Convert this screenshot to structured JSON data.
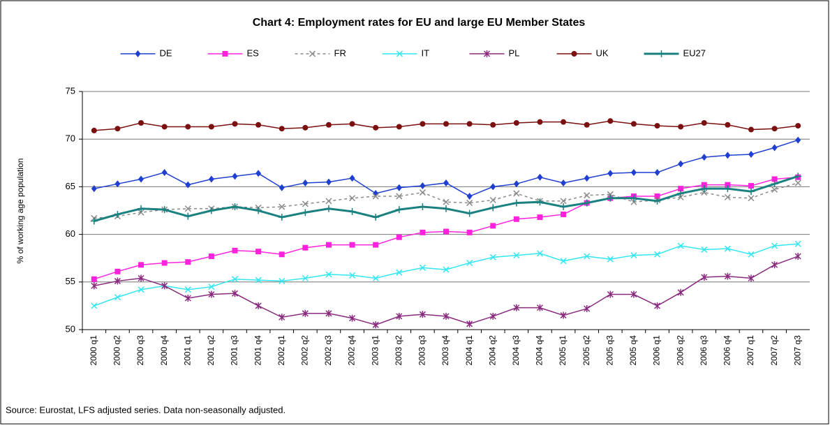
{
  "chart_data": {
    "type": "line",
    "title": "Chart 4: Employment rates for EU and large EU Member States",
    "y_label": "% of working age population",
    "source": "Source: Eurostat, LFS adjusted series. Data non-seasonally adjusted.",
    "categories": [
      "2000 q1",
      "2000 q2",
      "2000 q3",
      "2000 q4",
      "2001 q1",
      "2001 q2",
      "2001 q3",
      "2001 q4",
      "2002 q1",
      "2002 q2",
      "2002 q3",
      "2002 q4",
      "2003 q1",
      "2003 q2",
      "2003 q3",
      "2003 q4",
      "2004 q1",
      "2004 q2",
      "2004 q3",
      "2004 q4",
      "2005 q1",
      "2005 q2",
      "2005 q3",
      "2005 q4",
      "2006 q1",
      "2006 q2",
      "2006 q3",
      "2006 q4",
      "2007 q1",
      "2007 q2",
      "2007 q3"
    ],
    "ylim": [
      50,
      75
    ],
    "yticks": [
      50,
      55,
      60,
      65,
      70,
      75
    ],
    "grid": true,
    "legend": "top",
    "series": [
      {
        "name": "DE",
        "color": "#1f3fd0",
        "marker": "diamond",
        "dash": false,
        "values": [
          64.8,
          65.3,
          65.8,
          66.5,
          65.2,
          65.8,
          66.1,
          66.4,
          64.9,
          65.4,
          65.5,
          65.9,
          64.3,
          64.9,
          65.1,
          65.4,
          64.0,
          65.0,
          65.3,
          66.0,
          65.4,
          65.9,
          66.4,
          66.5,
          66.5,
          67.4,
          68.1,
          68.3,
          68.4,
          69.1,
          69.9
        ]
      },
      {
        "name": "ES",
        "color": "#ff22dd",
        "marker": "square",
        "dash": false,
        "values": [
          55.3,
          56.1,
          56.8,
          57.0,
          57.1,
          57.7,
          58.3,
          58.2,
          57.9,
          58.6,
          58.9,
          58.9,
          58.9,
          59.7,
          60.2,
          60.3,
          60.2,
          60.9,
          61.6,
          61.8,
          62.1,
          63.3,
          63.8,
          64.0,
          64.0,
          64.8,
          65.2,
          65.2,
          65.1,
          65.8,
          66.0
        ]
      },
      {
        "name": "FR",
        "color": "#8a8a8a",
        "marker": "x",
        "dash": true,
        "values": [
          61.7,
          61.9,
          62.3,
          62.6,
          62.7,
          62.7,
          62.9,
          62.8,
          62.9,
          63.2,
          63.5,
          63.8,
          64.0,
          64.0,
          64.4,
          63.4,
          63.3,
          63.6,
          64.3,
          63.5,
          63.5,
          64.1,
          64.2,
          63.4,
          63.6,
          63.9,
          64.4,
          63.9,
          63.8,
          64.7,
          65.4
        ]
      },
      {
        "name": "IT",
        "color": "#33e6f2",
        "marker": "x",
        "dash": false,
        "values": [
          52.5,
          53.4,
          54.2,
          54.6,
          54.2,
          54.5,
          55.3,
          55.2,
          55.1,
          55.4,
          55.8,
          55.7,
          55.4,
          56.0,
          56.5,
          56.3,
          57.0,
          57.6,
          57.8,
          58.0,
          57.2,
          57.7,
          57.4,
          57.8,
          57.9,
          58.8,
          58.4,
          58.5,
          57.9,
          58.8,
          59.0
        ]
      },
      {
        "name": "PL",
        "color": "#8a2a7e",
        "marker": "star",
        "dash": false,
        "values": [
          54.6,
          55.1,
          55.4,
          54.6,
          53.3,
          53.7,
          53.8,
          52.5,
          51.3,
          51.7,
          51.7,
          51.2,
          50.5,
          51.4,
          51.6,
          51.4,
          50.6,
          51.4,
          52.3,
          52.3,
          51.5,
          52.2,
          53.7,
          53.7,
          52.5,
          53.9,
          55.5,
          55.6,
          55.4,
          56.8,
          57.7
        ]
      },
      {
        "name": "UK",
        "color": "#7a1010",
        "marker": "circle",
        "dash": false,
        "values": [
          70.9,
          71.1,
          71.7,
          71.3,
          71.3,
          71.3,
          71.6,
          71.5,
          71.1,
          71.2,
          71.5,
          71.6,
          71.2,
          71.3,
          71.6,
          71.6,
          71.6,
          71.5,
          71.7,
          71.8,
          71.8,
          71.5,
          71.9,
          71.6,
          71.4,
          71.3,
          71.7,
          71.5,
          71.0,
          71.1,
          71.4
        ]
      },
      {
        "name": "EU27",
        "color": "#1a8080",
        "marker": "plus",
        "dash": false,
        "values": [
          61.4,
          62.1,
          62.7,
          62.6,
          61.9,
          62.5,
          62.9,
          62.5,
          61.8,
          62.3,
          62.7,
          62.4,
          61.8,
          62.6,
          62.9,
          62.7,
          62.2,
          62.8,
          63.3,
          63.4,
          62.9,
          63.3,
          63.8,
          63.8,
          63.5,
          64.3,
          64.8,
          64.8,
          64.5,
          65.3,
          66.1
        ]
      }
    ]
  }
}
